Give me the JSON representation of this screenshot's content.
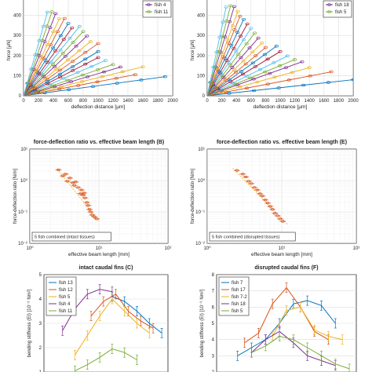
{
  "figure": {
    "panels": [
      {
        "type": "scatter",
        "title": "",
        "xlabel": "deflection distance [μm]",
        "ylabel": "force [μN]",
        "xlim": [
          0,
          2000
        ],
        "ylim": [
          0,
          500
        ],
        "xticks": [
          0,
          200,
          400,
          600,
          800,
          1000,
          1200,
          1400,
          1600,
          1800,
          2000
        ],
        "yticks": [
          0,
          100,
          200,
          300,
          400
        ],
        "grid": true,
        "legend_position": "top-right",
        "legend_entries": [
          "fish 4",
          "fish 11"
        ],
        "legend_colors": [
          "#7e2f8e",
          "#77ac30"
        ],
        "line_slopes": [
          0.05,
          0.07,
          0.09,
          0.11,
          0.13,
          0.16,
          0.19,
          0.22,
          0.26,
          0.3,
          0.35,
          0.4,
          0.46,
          0.52,
          0.6,
          0.7,
          0.8,
          0.95,
          1.1,
          1.3
        ],
        "line_xmax": [
          1900,
          1500,
          1600,
          1300,
          1200,
          1100,
          1000,
          1000,
          1000,
          900,
          850,
          800,
          750,
          650,
          600,
          550,
          480,
          430,
          380,
          320
        ],
        "line_colors": [
          "#0072bd",
          "#d95319",
          "#edb120",
          "#7e2f8e",
          "#77ac30",
          "#4dbeee",
          "#a2142f",
          "#0072bd",
          "#d95319",
          "#edb120",
          "#7e2f8e",
          "#77ac30",
          "#4dbeee",
          "#a2142f",
          "#0072bd",
          "#d95319",
          "#edb120",
          "#7e2f8e",
          "#77ac30",
          "#4dbeee"
        ]
      },
      {
        "type": "scatter",
        "title": "",
        "xlabel": "deflection distance [μm]",
        "ylabel": "force [μN]",
        "xlim": [
          0,
          2000
        ],
        "ylim": [
          0,
          500
        ],
        "xticks": [
          0,
          200,
          400,
          600,
          800,
          1000,
          1200,
          1400,
          1600,
          1800,
          2000
        ],
        "yticks": [
          0,
          100,
          200,
          300,
          400
        ],
        "grid": true,
        "legend_position": "top-right",
        "legend_entries": [
          "fish 18",
          "fish 5"
        ],
        "legend_colors": [
          "#7e2f8e",
          "#77ac30"
        ],
        "line_slopes": [
          0.04,
          0.07,
          0.1,
          0.13,
          0.15,
          0.18,
          0.22,
          0.26,
          0.3,
          0.35,
          0.41,
          0.48,
          0.56,
          0.65,
          0.76,
          0.88,
          1.0,
          1.2,
          1.4,
          1.7
        ],
        "line_xmax": [
          2000,
          1700,
          1400,
          1300,
          1200,
          1100,
          1000,
          950,
          800,
          750,
          700,
          650,
          600,
          550,
          500,
          450,
          420,
          370,
          320,
          260
        ],
        "line_colors": [
          "#0072bd",
          "#d95319",
          "#edb120",
          "#7e2f8e",
          "#77ac30",
          "#4dbeee",
          "#a2142f",
          "#0072bd",
          "#d95319",
          "#edb120",
          "#7e2f8e",
          "#77ac30",
          "#4dbeee",
          "#a2142f",
          "#0072bd",
          "#d95319",
          "#edb120",
          "#7e2f8e",
          "#77ac30",
          "#4dbeee"
        ]
      },
      {
        "type": "scatter",
        "title": "force-deflection ratio vs. effective beam length (B)",
        "xlabel": "effective beam length [mm]",
        "ylabel": "force-deflection ratio [N/m]",
        "x_log": true,
        "y_log": true,
        "xlim": [
          1,
          100
        ],
        "ylim": [
          0.01,
          10
        ],
        "xticks": [
          1,
          10,
          100
        ],
        "xtick_labels": [
          "10⁰",
          "10¹",
          "10²"
        ],
        "yticks": [
          0.01,
          0.1,
          1,
          10
        ],
        "ytick_labels": [
          "10⁻²",
          "10⁻¹",
          "10⁰",
          "10¹"
        ],
        "grid": true,
        "annotation": "5 fish combined (intact tissues)",
        "trend": [
          [
            2.5,
            2.3
          ],
          [
            10,
            0.05
          ]
        ],
        "x": [
          2.6,
          3.0,
          3.3,
          3.5,
          3.8,
          4.2,
          4.4,
          4.6,
          5.0,
          5.4,
          5.6,
          5.9,
          6.1,
          6.3,
          6.7,
          7.0,
          7.3,
          7.6,
          8.0,
          8.6,
          9.3
        ],
        "y": [
          2.2,
          1.4,
          1.6,
          0.95,
          1.2,
          0.85,
          0.7,
          0.9,
          0.6,
          0.38,
          0.5,
          0.34,
          0.4,
          0.28,
          0.2,
          0.16,
          0.12,
          0.1,
          0.08,
          0.07,
          0.06
        ]
      },
      {
        "type": "scatter",
        "title": "force-deflection ratio vs. effective beam length (E)",
        "xlabel": "effective beam length [mm]",
        "ylabel": "force-deflection ratio [N/m]",
        "x_log": true,
        "y_log": true,
        "xlim": [
          1,
          100
        ],
        "ylim": [
          0.01,
          10
        ],
        "xticks": [
          1,
          10,
          100
        ],
        "xtick_labels": [
          "10⁰",
          "10¹",
          "10²"
        ],
        "yticks": [
          0.01,
          0.1,
          1,
          10
        ],
        "ytick_labels": [
          "10⁻²",
          "10⁻¹",
          "10⁰",
          "10¹"
        ],
        "grid": true,
        "annotation": "5 fish combined (disrupted tissues)",
        "trend": [
          [
            2.2,
            2.5
          ],
          [
            12,
            0.04
          ]
        ],
        "x": [
          2.5,
          3.0,
          3.3,
          3.6,
          3.9,
          4.3,
          4.7,
          5.1,
          5.5,
          6.0,
          6.5,
          7.0,
          7.5,
          8.1,
          8.8,
          9.5,
          10.3
        ],
        "y": [
          2.1,
          1.6,
          1.3,
          0.95,
          0.8,
          0.6,
          0.5,
          0.38,
          0.32,
          0.24,
          0.19,
          0.15,
          0.12,
          0.09,
          0.075,
          0.06,
          0.05
        ]
      },
      {
        "type": "line",
        "title": "intact caudal fins (C)",
        "xlabel": "",
        "ylabel": "bending stiffness (EI) [10⁻⁹ Nm²]",
        "xlim": [
          0,
          10
        ],
        "ylim": [
          1,
          5
        ],
        "yticks": [
          1,
          2,
          3,
          4,
          5
        ],
        "grid": true,
        "legend_position": "top-left",
        "series": [
          {
            "name": "fish 13",
            "color": "#0072bd",
            "x": [
              5.5,
              6.5,
              7.5,
              8.5,
              9.5
            ],
            "y": [
              4.1,
              3.9,
              3.5,
              3.0,
              2.6
            ]
          },
          {
            "name": "fish 12",
            "color": "#d95319",
            "x": [
              3.8,
              4.8,
              5.8,
              6.8,
              7.8,
              8.8
            ],
            "y": [
              3.3,
              3.9,
              4.2,
              3.5,
              3.1,
              2.8
            ]
          },
          {
            "name": "fish 5",
            "color": "#edb120",
            "x": [
              2.5,
              3.5,
              4.5,
              5.5,
              6.5,
              7.5,
              8.5
            ],
            "y": [
              1.7,
              2.5,
              3.3,
              4.0,
              3.5,
              3.0,
              2.6
            ]
          },
          {
            "name": "fish 4",
            "color": "#7e2f8e",
            "x": [
              1.5,
              2.5,
              3.5,
              4.5,
              5.5
            ],
            "y": [
              2.7,
              3.6,
              4.2,
              4.4,
              4.3
            ]
          },
          {
            "name": "fish 11",
            "color": "#77ac30",
            "x": [
              2.5,
              3.5,
              4.5,
              5.5,
              6.5,
              7.5
            ],
            "y": [
              1.05,
              1.3,
              1.6,
              1.95,
              1.8,
              1.5
            ]
          }
        ]
      },
      {
        "type": "line",
        "title": "disrupted caudal fins (F)",
        "xlabel": "",
        "ylabel": "bending stiffness (EI) [10⁻⁹ Nm²]",
        "xlim": [
          0,
          10
        ],
        "ylim": [
          2,
          8
        ],
        "yticks": [
          2,
          3,
          4,
          5,
          6,
          7,
          8
        ],
        "grid": true,
        "legend_position": "top-left",
        "series": [
          {
            "name": "fish 7",
            "color": "#0072bd",
            "x": [
              1.5,
              2.5,
              3.5,
              4.5,
              5.5,
              6.5,
              7.5,
              8.5
            ],
            "y": [
              3.0,
              3.5,
              4.0,
              5.0,
              6.2,
              6.4,
              6.1,
              5.0
            ]
          },
          {
            "name": "fish 17",
            "color": "#d95319",
            "x": [
              2.0,
              3.0,
              4.0,
              5.0,
              6.0,
              7.0,
              8.0
            ],
            "y": [
              3.8,
              4.4,
              6.2,
              7.2,
              6.0,
              4.5,
              4.0
            ]
          },
          {
            "name": "fish 7-2",
            "color": "#edb120",
            "x": [
              4.0,
              5.0,
              6.0,
              7.0,
              8.0,
              9.0
            ],
            "y": [
              4.2,
              5.8,
              6.0,
              4.6,
              4.2,
              4.0
            ]
          },
          {
            "name": "fish 18",
            "color": "#7e2f8e",
            "x": [
              2.5,
              3.5,
              4.5,
              5.5,
              6.5,
              7.5,
              8.5
            ],
            "y": [
              3.2,
              4.0,
              4.5,
              3.8,
              3.0,
              2.7,
              2.4
            ]
          },
          {
            "name": "fish 5",
            "color": "#77ac30",
            "x": [
              2.5,
              3.5,
              4.5,
              5.5,
              6.5,
              7.5,
              8.5,
              9.5
            ],
            "y": [
              3.2,
              3.6,
              4.2,
              4.0,
              3.5,
              3.0,
              2.5,
              2.2
            ]
          }
        ]
      }
    ]
  }
}
